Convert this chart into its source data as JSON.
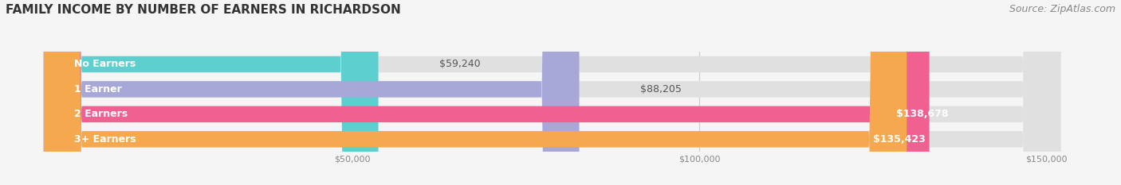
{
  "title": "FAMILY INCOME BY NUMBER OF EARNERS IN RICHARDSON",
  "source": "Source: ZipAtlas.com",
  "categories": [
    "No Earners",
    "1 Earner",
    "2 Earners",
    "3+ Earners"
  ],
  "values": [
    59240,
    88205,
    138678,
    135423
  ],
  "labels": [
    "$59,240",
    "$88,205",
    "$138,678",
    "$135,423"
  ],
  "bar_colors": [
    "#5ecfcf",
    "#a8a8d8",
    "#f06090",
    "#f5a84e"
  ],
  "bar_bg_color": "#e0e0e0",
  "label_colors_outside": "#555555",
  "label_colors_inside": "#ffffff",
  "xlim": [
    0,
    160000
  ],
  "xticks": [
    50000,
    100000,
    150000
  ],
  "xtick_labels": [
    "$50,000",
    "$100,000",
    "$150,000"
  ],
  "title_fontsize": 11,
  "source_fontsize": 9,
  "label_fontsize": 9,
  "category_fontsize": 9,
  "bar_height": 0.65,
  "background_color": "#f5f5f5",
  "inside_threshold": 120000
}
